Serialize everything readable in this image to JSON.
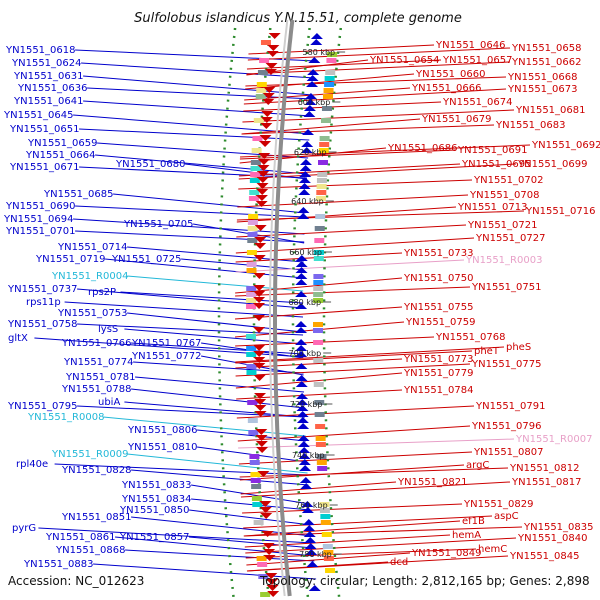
{
  "title": "Sulfolobus islandicus Y.N.15.51, complete genome",
  "accession": "Accession: NC_012623",
  "topology": "Topology: circular; Length: 2,812,165 bp; Genes: 2,898",
  "colors": {
    "forward": "#0000cc",
    "reverse": "#cc0000",
    "rna_forward": "#22b8d8",
    "rna_reverse": "#e8a0c8",
    "backbone": "#8c8c8c",
    "track_dots": "#2e8b2e"
  },
  "kbp_ticks": [
    "580 kbp",
    "600 kbp",
    "620 kbp",
    "640 kbp",
    "660 kbp",
    "680 kbp",
    "700 kbp",
    "720 kbp",
    "740 kbp",
    "760 kbp",
    "780 kbp"
  ],
  "left_labels": [
    "YN1551_0618",
    "YN1551_0624",
    "YN1551_0631",
    "YN1551_0636",
    "YN1551_0641",
    "YN1551_0645",
    "YN1551_0651",
    "YN1551_0659",
    "YN1551_0664",
    "YN1551_0671",
    "YN1551_0680",
    "YN1551_0685",
    "YN1551_0690",
    "YN1551_0694",
    "YN1551_0705",
    "YN1551_0701",
    "YN1551_0714",
    "YN1551_0719",
    "YN1551_0725",
    "YN1551_R0004",
    "YN1551_0737",
    "rps2P",
    "rps11p",
    "YN1551_0753",
    "YN1551_0758",
    "lysS",
    "gltX",
    "YN1551_0766",
    "YN1551_0767",
    "YN1551_0772",
    "YN1551_0774",
    "YN1551_0781",
    "YN1551_0788",
    "YN1551_0795",
    "ubiA",
    "YN1551_R0008",
    "YN1551_0806",
    "YN1551_0810",
    "YN1551_R0009",
    "rpl40e",
    "YN1551_0828",
    "YN1551_0833",
    "YN1551_0834",
    "YN1551_0850",
    "YN1551_0851",
    "YN1551_0857",
    "pyrG",
    "YN1551_0861",
    "YN1551_0868",
    "YN1551_0883"
  ],
  "right_labels": [
    "YN1551_0646",
    "YN1551_0658",
    "YN1551_0654",
    "YN1551_0657",
    "YN1551_0662",
    "YN1551_0660",
    "YN1551_0668",
    "YN1551_0666",
    "YN1551_0673",
    "YN1551_0674",
    "YN1551_0681",
    "YN1551_0679",
    "YN1551_0683",
    "YN1551_0692",
    "YN1551_0686",
    "YN1551_0691",
    "YN1551_0695",
    "YN1551_0699",
    "YN1551_0702",
    "YN1551_0708",
    "YN1551_0713",
    "YN1551_0716",
    "YN1551_0721",
    "YN1551_0727",
    "YN1551_0733",
    "YN1551_R0003",
    "YN1551_0750",
    "YN1551_0751",
    "YN1551_0755",
    "YN1551_0759",
    "YN1551_0768",
    "pheT",
    "pheS",
    "YN1551_0773",
    "YN1551_0775",
    "YN1551_0779",
    "YN1551_0784",
    "YN1551_0791",
    "YN1551_0796",
    "YN1551_R0007",
    "YN1551_0807",
    "argC",
    "YN1551_0812",
    "YN1551_0821",
    "YN1551_0817",
    "YN1551_0829",
    "aspC",
    "ef1B",
    "YN1551_0835",
    "hemA",
    "YN1551_0840",
    "hemC",
    "YN1551_0849",
    "YN1551_0845",
    "dcd"
  ]
}
